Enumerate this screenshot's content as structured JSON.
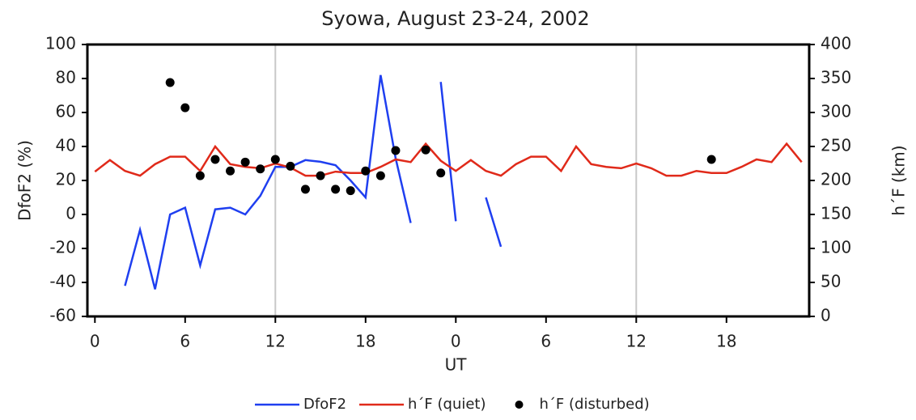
{
  "chart_data": {
    "type": "line",
    "title": "Syowa, August 23-24, 2002",
    "x_label": "UT",
    "y_label": "DfoF2 (%)",
    "y2_label": "h´F (km)",
    "x": [
      0,
      1,
      2,
      3,
      4,
      5,
      6,
      7,
      8,
      9,
      10,
      11,
      12,
      13,
      14,
      15,
      16,
      17,
      18,
      19,
      20,
      21,
      22,
      23,
      24,
      25,
      26,
      27,
      28,
      29,
      30,
      31,
      32,
      33,
      34,
      35,
      36,
      37,
      38,
      39,
      40,
      41,
      42,
      43,
      44,
      45,
      46,
      47
    ],
    "xlim": [
      -0.5,
      47.5
    ],
    "xticks": [
      0,
      6,
      12,
      18,
      {
        "value": 24,
        "label": "0"
      },
      {
        "value": 30,
        "label": "6"
      },
      {
        "value": 36,
        "label": "12"
      },
      {
        "value": 42,
        "label": "18"
      }
    ],
    "xgrid": [
      12,
      36
    ],
    "ylim": [
      -60,
      100
    ],
    "yticks": [
      -60,
      -40,
      -20,
      0,
      20,
      40,
      60,
      80,
      100
    ],
    "y2lim": [
      0,
      400
    ],
    "y2ticks": [
      0,
      50,
      100,
      150,
      200,
      250,
      300,
      350,
      400
    ],
    "legend": "bottom",
    "series": [
      {
        "name": "DfoF2",
        "color": "#1f3ff0",
        "type": "line",
        "values": [
          null,
          null,
          -42,
          -9,
          -44,
          0,
          4,
          -30,
          3,
          4,
          0,
          11,
          28,
          28,
          32,
          31,
          29,
          20,
          10,
          82,
          33,
          -5,
          null,
          78,
          -4,
          null,
          10,
          -19,
          null,
          null,
          null,
          null,
          null,
          null,
          null,
          null,
          null,
          null,
          null,
          null,
          null,
          null,
          null,
          null,
          null,
          null,
          null,
          null
        ]
      },
      {
        "name": "h´F (quiet)",
        "color": "#e02a1a",
        "type": "line",
        "axis": "y2",
        "values": [
          213,
          230,
          214,
          207,
          224,
          235,
          235,
          214,
          250,
          224,
          220,
          218,
          225,
          219,
          207,
          207,
          213,
          211,
          211,
          220,
          231,
          227,
          254,
          229,
          214,
          230,
          214,
          207,
          224,
          235,
          235,
          214,
          250,
          224,
          220,
          218,
          225,
          218,
          207,
          207,
          214,
          211,
          211,
          220,
          231,
          227,
          254,
          227
        ]
      },
      {
        "name": "h´F (disturbed)",
        "color": "#000000",
        "type": "scatter",
        "axis": "y2",
        "x": [
          5,
          6,
          7,
          8,
          9,
          10,
          11,
          12,
          13,
          14,
          15,
          16,
          17,
          18,
          19,
          20,
          22,
          23,
          41
        ],
        "values": [
          344,
          307,
          207,
          231,
          214,
          227,
          217,
          231,
          221,
          187,
          207,
          187,
          185,
          214,
          207,
          244,
          245,
          211,
          231
        ]
      }
    ]
  }
}
